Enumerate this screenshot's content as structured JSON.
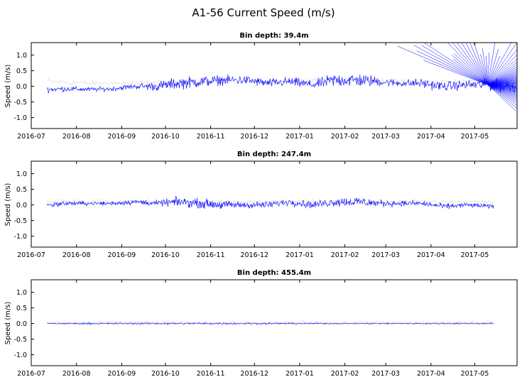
{
  "figure": {
    "title": "A1-56 Current Speed (m/s)"
  },
  "chart_data": [
    {
      "type": "line",
      "title": "Bin depth: 39.4m",
      "ylabel": "Speed (m/s)",
      "xlabel": "",
      "ylim": [
        -1.35,
        1.4
      ],
      "xlim": [
        "2016-07-01",
        "2017-05-30"
      ],
      "x_ticks": [
        "2016-07",
        "2016-08",
        "2016-09",
        "2016-10",
        "2016-11",
        "2016-12",
        "2017-01",
        "2017-02",
        "2017-03",
        "2017-04",
        "2017-05"
      ],
      "y_ticks": [
        "1.0",
        "0.5",
        "0.0",
        "-0.5",
        "-1.0"
      ],
      "y_tick_values": [
        1.0,
        0.5,
        0.0,
        -0.5,
        -1.0
      ],
      "series": [
        {
          "color": "#0000ff",
          "x": [
            "2016-07-12",
            "2016-07-25",
            "2016-08-10",
            "2016-08-25",
            "2016-09-10",
            "2016-09-25",
            "2016-10-10",
            "2016-10-25",
            "2016-11-10",
            "2016-11-25",
            "2016-12-10",
            "2016-12-25",
            "2017-01-10",
            "2017-01-25",
            "2017-02-10",
            "2017-02-25",
            "2017-03-10",
            "2017-03-25",
            "2017-04-10",
            "2017-04-25",
            "2017-05-10",
            "2017-05-30"
          ],
          "values": [
            -0.1,
            -0.08,
            -0.1,
            -0.08,
            0.0,
            0.0,
            0.1,
            0.15,
            0.2,
            0.2,
            0.1,
            0.15,
            0.05,
            0.2,
            0.2,
            0.15,
            0.1,
            0.1,
            0.0,
            0.05,
            0.05,
            0.0
          ],
          "spread": [
            0.12,
            0.12,
            0.1,
            0.1,
            0.12,
            0.2,
            0.25,
            0.25,
            0.2,
            0.2,
            0.18,
            0.2,
            0.18,
            0.3,
            0.3,
            0.2,
            0.15,
            0.2,
            0.2,
            0.2,
            0.25,
            0.3
          ]
        },
        {
          "color": "#e8e8e8",
          "x": [
            "2016-07-12",
            "2016-08-10",
            "2016-09-10",
            "2016-10-10",
            "2016-11-10",
            "2016-12-10",
            "2017-01-10",
            "2017-02-10",
            "2017-03-10",
            "2017-04-10",
            "2017-05-10"
          ],
          "values": [
            0.15,
            0.1,
            0.1,
            0.15,
            0.15,
            0.15,
            0.15,
            0.2,
            0.15,
            0.15,
            0.15
          ],
          "spread": [
            0.15,
            0.12,
            0.1,
            0.1,
            0.1,
            0.1,
            0.12,
            0.15,
            0.1,
            0.1,
            0.12
          ]
        }
      ]
    },
    {
      "type": "line",
      "title": "Bin depth: 247.4m",
      "ylabel": "Speed (m/s)",
      "xlabel": "",
      "ylim": [
        -1.35,
        1.4
      ],
      "xlim": [
        "2016-07-01",
        "2017-05-30"
      ],
      "x_ticks": [
        "2016-07",
        "2016-08",
        "2016-09",
        "2016-10",
        "2016-11",
        "2016-12",
        "2017-01",
        "2017-02",
        "2017-03",
        "2017-04",
        "2017-05"
      ],
      "y_ticks": [
        "1.0",
        "0.5",
        "0.0",
        "-0.5",
        "-1.0"
      ],
      "y_tick_values": [
        1.0,
        0.5,
        0.0,
        -0.5,
        -1.0
      ],
      "series": [
        {
          "color": "#0000ff",
          "x": [
            "2016-07-12",
            "2016-07-25",
            "2016-08-10",
            "2016-08-25",
            "2016-09-10",
            "2016-09-25",
            "2016-10-10",
            "2016-10-25",
            "2016-11-10",
            "2016-11-25",
            "2016-12-10",
            "2016-12-25",
            "2017-01-10",
            "2017-01-25",
            "2017-02-10",
            "2017-02-25",
            "2017-03-10",
            "2017-03-25",
            "2017-04-10",
            "2017-04-25",
            "2017-05-14"
          ],
          "values": [
            0.0,
            0.05,
            0.05,
            0.05,
            0.1,
            0.05,
            0.1,
            0.05,
            0.0,
            0.0,
            0.0,
            0.1,
            0.0,
            0.1,
            0.1,
            0.05,
            0.05,
            0.05,
            -0.05,
            0.0,
            -0.05
          ],
          "spread": [
            0.12,
            0.1,
            0.08,
            0.1,
            0.12,
            0.12,
            0.2,
            0.2,
            0.18,
            0.15,
            0.15,
            0.15,
            0.15,
            0.2,
            0.22,
            0.15,
            0.12,
            0.12,
            0.12,
            0.1,
            0.1
          ]
        },
        {
          "color": "#e8e8e8",
          "x": [
            "2016-07-12",
            "2016-09-10",
            "2016-11-10",
            "2017-01-10",
            "2017-03-10",
            "2017-05-14"
          ],
          "values": [
            0.1,
            0.1,
            0.1,
            0.1,
            0.1,
            0.1
          ],
          "spread": [
            0.1,
            0.1,
            0.1,
            0.1,
            0.1,
            0.1
          ]
        }
      ]
    },
    {
      "type": "line",
      "title": "Bin depth: 455.4m",
      "ylabel": "Speed (m/s)",
      "xlabel": "",
      "ylim": [
        -1.35,
        1.4
      ],
      "xlim": [
        "2016-07-01",
        "2017-05-30"
      ],
      "x_ticks": [
        "2016-07",
        "2016-08",
        "2016-09",
        "2016-10",
        "2016-11",
        "2016-12",
        "2017-01",
        "2017-02",
        "2017-03",
        "2017-04",
        "2017-05"
      ],
      "y_ticks": [
        "1.0",
        "0.5",
        "0.0",
        "-0.5",
        "-1.0"
      ],
      "y_tick_values": [
        1.0,
        0.5,
        0.0,
        -0.5,
        -1.0
      ],
      "series": [
        {
          "color": "#0000ff",
          "x": [
            "2016-07-12",
            "2016-09-10",
            "2016-11-10",
            "2017-01-10",
            "2017-03-10",
            "2017-05-14"
          ],
          "values": [
            0.0,
            0.0,
            0.0,
            0.0,
            0.0,
            0.0
          ],
          "spread": [
            0.03,
            0.04,
            0.04,
            0.03,
            0.03,
            0.03
          ]
        },
        {
          "color": "#e8e8e8",
          "x": [
            "2016-07-12",
            "2016-09-10",
            "2016-11-10",
            "2017-01-10",
            "2017-03-10",
            "2017-05-14"
          ],
          "values": [
            0.03,
            0.03,
            0.03,
            0.03,
            0.03,
            0.03
          ],
          "spread": [
            0.06,
            0.06,
            0.06,
            0.06,
            0.06,
            0.06
          ]
        }
      ]
    }
  ]
}
